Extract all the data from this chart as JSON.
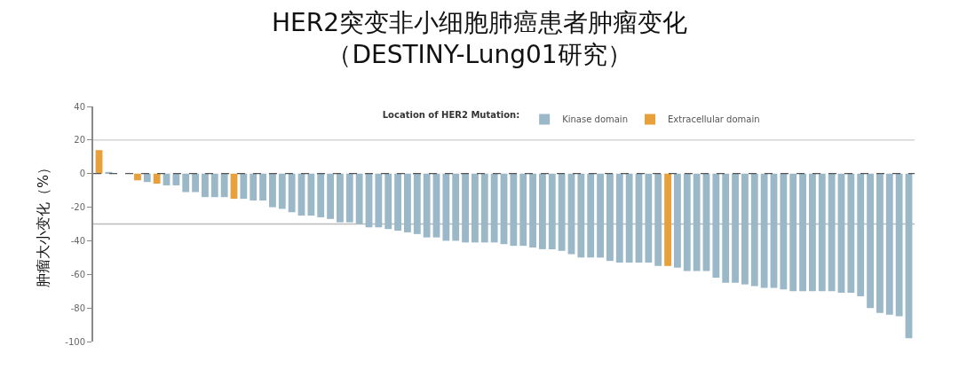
{
  "chart_data": {
    "type": "bar",
    "title": "HER2突变非小细胞肺癌患者肿瘤变化",
    "subtitle": "（DESTINY-Lung01研究）",
    "ylabel": "肿瘤大小变化（%）",
    "legend_title": "Location of HER2 Mutation:",
    "categories": [
      null,
      null,
      null,
      null,
      null,
      null,
      null,
      null,
      null,
      null,
      null,
      null,
      null,
      null,
      null,
      null,
      null,
      null,
      null,
      null,
      null,
      null,
      null,
      null,
      null,
      null,
      null,
      null,
      null,
      null,
      null,
      null,
      null,
      null,
      null,
      null,
      null,
      null,
      null,
      null,
      null,
      null,
      null,
      null,
      null,
      null,
      null,
      null,
      null,
      null,
      null,
      null,
      null,
      null,
      null,
      null,
      null,
      null,
      null,
      null,
      null,
      null,
      null,
      null,
      null,
      null,
      null,
      null,
      null,
      null,
      null,
      null,
      null,
      null,
      null,
      null,
      null,
      null,
      null,
      null,
      null,
      null,
      null,
      null,
      null
    ],
    "series": [
      {
        "name": "Kinase domain",
        "color": "#9ab8c8",
        "values": [
          null,
          1,
          0,
          0,
          null,
          -5,
          null,
          -7,
          -7,
          -11,
          -11,
          -14,
          -14,
          -14,
          null,
          -15,
          -16,
          -16,
          -20,
          -21,
          -23,
          -25,
          -25,
          -26,
          -27,
          -29,
          -29,
          -30,
          -32,
          -32,
          -33,
          -34,
          -35,
          -36,
          -38,
          -38,
          -40,
          -40,
          -41,
          -41,
          -41,
          -41,
          -42,
          -43,
          -43,
          -44,
          -45,
          -45,
          -46,
          -48,
          -50,
          -50,
          -50,
          -52,
          -53,
          -53,
          -53,
          -53,
          -55,
          null,
          -56,
          -58,
          -58,
          -58,
          -62,
          -65,
          -65,
          -66,
          -67,
          -68,
          -68,
          -69,
          -70,
          -70,
          -70,
          -70,
          -70,
          -71,
          -71,
          -73,
          -80,
          -83,
          -84,
          -85,
          -98
        ]
      },
      {
        "name": "Extracellular domain",
        "color": "#e8a03a",
        "values": [
          14,
          null,
          null,
          null,
          -4,
          null,
          -6,
          null,
          null,
          null,
          null,
          null,
          null,
          null,
          -15,
          null,
          null,
          null,
          null,
          null,
          null,
          null,
          null,
          null,
          null,
          null,
          null,
          null,
          null,
          null,
          null,
          null,
          null,
          null,
          null,
          null,
          null,
          null,
          null,
          null,
          null,
          null,
          null,
          null,
          null,
          null,
          null,
          null,
          null,
          null,
          null,
          null,
          null,
          null,
          null,
          null,
          null,
          null,
          null,
          -55,
          null,
          null,
          null,
          null,
          null,
          null,
          null,
          null,
          null,
          null,
          null,
          null,
          null,
          null,
          null,
          null,
          null,
          null,
          null,
          null,
          null,
          null,
          null,
          null,
          null
        ]
      }
    ],
    "ylim": [
      -100,
      40
    ],
    "yticks": [
      40,
      20,
      0,
      -20,
      -40,
      -60,
      -80,
      -100
    ],
    "ref_lines": [
      {
        "axis": "y",
        "value": 20,
        "color": "#cccccc",
        "line_style": "solid"
      },
      {
        "axis": "y",
        "value": -30,
        "color": "#bbbbbb",
        "line_style": "solid"
      },
      {
        "axis": "y",
        "value": 0,
        "color": "#555555",
        "line_style": "dashed"
      }
    ],
    "grid": false,
    "legend": "top",
    "tick_labels": "y"
  }
}
